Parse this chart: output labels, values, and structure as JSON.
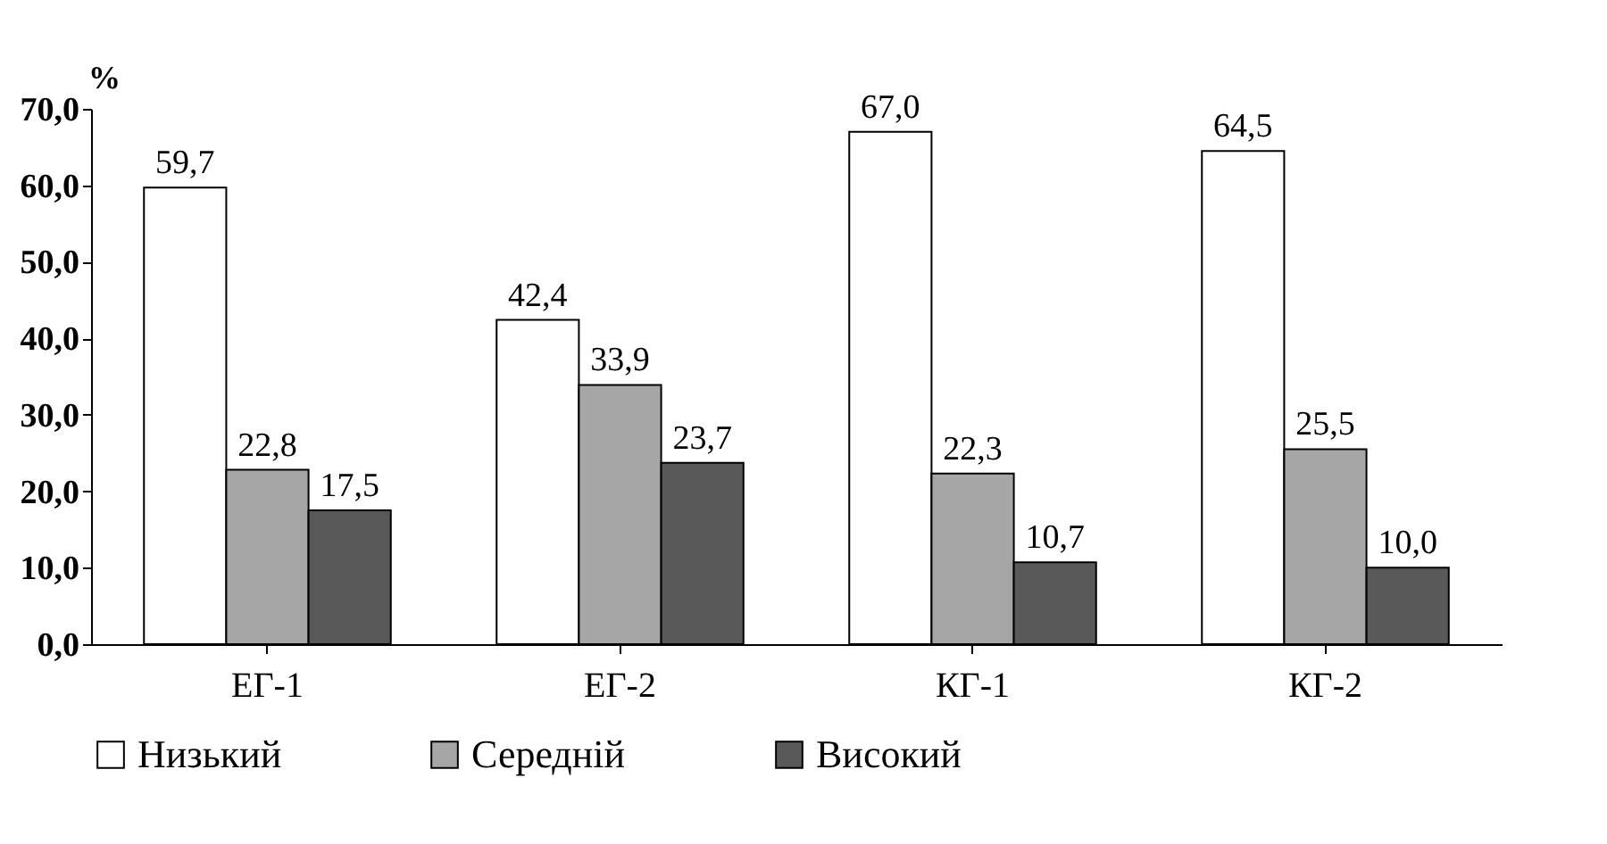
{
  "chart_data": {
    "type": "bar",
    "ylabel": "%",
    "categories": [
      "ЕГ-1",
      "ЕГ-2",
      "КГ-1",
      "КГ-2"
    ],
    "series": [
      {
        "name": "Низький",
        "color": "#ffffff",
        "values": [
          59.7,
          42.4,
          67.0,
          64.5
        ],
        "value_labels": [
          "59,7",
          "42,4",
          "67,0",
          "64,5"
        ]
      },
      {
        "name": "Середній",
        "color": "#a6a6a6",
        "values": [
          22.8,
          33.9,
          22.3,
          25.5
        ],
        "value_labels": [
          "22,8",
          "33,9",
          "22,3",
          "25,5"
        ]
      },
      {
        "name": "Високий",
        "color": "#595959",
        "values": [
          17.5,
          23.7,
          10.7,
          10.0
        ],
        "value_labels": [
          "17,5",
          "23,7",
          "10,7",
          "10,0"
        ]
      }
    ],
    "ylim": [
      0,
      70
    ],
    "yticks": [
      {
        "value": 0,
        "label": "0,0"
      },
      {
        "value": 10,
        "label": "10,0"
      },
      {
        "value": 20,
        "label": "20,0"
      },
      {
        "value": 30,
        "label": "30,0"
      },
      {
        "value": 40,
        "label": "40,0"
      },
      {
        "value": 50,
        "label": "50,0"
      },
      {
        "value": 60,
        "label": "60,0"
      },
      {
        "value": 70,
        "label": "70,0"
      }
    ],
    "grid": false,
    "legend": "bottom"
  }
}
